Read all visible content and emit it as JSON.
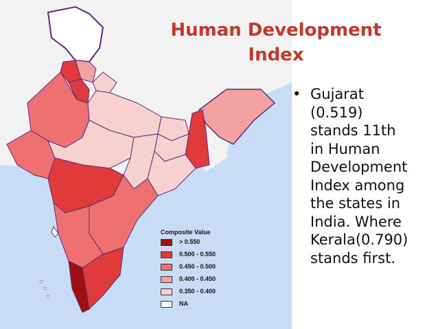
{
  "slide": {
    "title_line1": "Human Development",
    "title_line2": "Index",
    "bullet_symbol": "•",
    "bullet_text": "Gujarat\n(0.519)\nstands 11th\nin Human\nDevelopment\nIndex among\nthe states in\nIndia. Where\nKerala(0.790)\nstands first.",
    "title_color": "#c0392b"
  },
  "legend": {
    "title": "Composite Value",
    "items": [
      {
        "label": "> 0.550",
        "color": "#a01010"
      },
      {
        "label": "0.500 - 0.550",
        "color": "#e03a3a"
      },
      {
        "label": "0.450 - 0.500",
        "color": "#ef7070"
      },
      {
        "label": "0.400 - 0.450",
        "color": "#f3a2a2"
      },
      {
        "label": "0.350 - 0.400",
        "color": "#f7d0d0"
      },
      {
        "label": "NA",
        "color": "#ffffff"
      }
    ]
  },
  "map": {
    "sea_color": "#c8dcf5",
    "border_color": "#5a2a7a"
  }
}
